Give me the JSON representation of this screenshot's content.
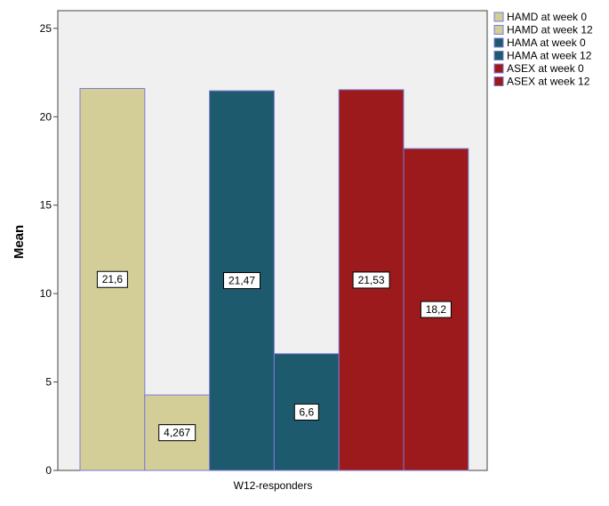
{
  "chart_data": {
    "type": "bar",
    "categories": [
      "W12-responders"
    ],
    "series": [
      {
        "name": "HAMD at week 0",
        "values": [
          21.6
        ],
        "label": "21,6",
        "color": "#d3ce98"
      },
      {
        "name": "HAMD at week 12",
        "values": [
          4.267
        ],
        "label": "4,267",
        "color": "#d3ce98"
      },
      {
        "name": "HAMA at week 0",
        "values": [
          21.47
        ],
        "label": "21,47",
        "color": "#1e5a6e"
      },
      {
        "name": "HAMA at week 12",
        "values": [
          6.6
        ],
        "label": "6,6",
        "color": "#1e5a6e"
      },
      {
        "name": "ASEX at week 0",
        "values": [
          21.53
        ],
        "label": "21,53",
        "color": "#9c1a1c"
      },
      {
        "name": "ASEX at week 12",
        "values": [
          18.2
        ],
        "label": "18,2",
        "color": "#9c1a1c"
      }
    ],
    "ylabel": "Mean",
    "xlabel": "",
    "ylim": [
      0,
      26
    ],
    "yticks": [
      0,
      5,
      10,
      15,
      20,
      25
    ],
    "grid": false,
    "legend_position": "top-right",
    "plot_background": "#f0f0f0",
    "bar_border_color": "#7b7bd6"
  }
}
